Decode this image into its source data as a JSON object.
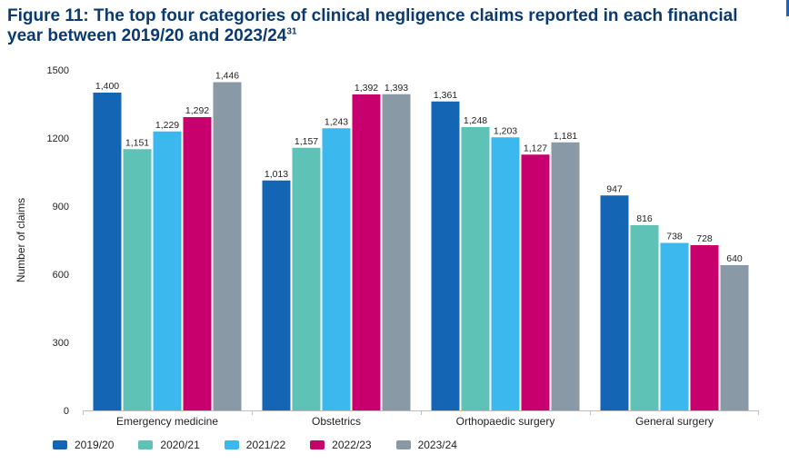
{
  "title": {
    "text": "Figure 11: The top four categories of clinical negligence claims reported in each financial year between 2019/20 and 2023/24",
    "superscript": "31"
  },
  "colors": {
    "2019/20": "#1465b4",
    "2020/21": "#5fc2b6",
    "2021/22": "#3bb8ed",
    "2022/23": "#c8006e",
    "2023/24": "#8a99a6"
  },
  "chart_data": {
    "type": "bar",
    "categories": [
      "Emergency medicine",
      "Obstetrics",
      "Orthopaedic surgery",
      "General surgery"
    ],
    "series": [
      {
        "name": "2019/20",
        "values": [
          1400,
          1013,
          1361,
          947
        ],
        "labels": [
          "1,400",
          "1,013",
          "1,361",
          "947"
        ]
      },
      {
        "name": "2020/21",
        "values": [
          1151,
          1157,
          1248,
          816
        ],
        "labels": [
          "1,151",
          "1,157",
          "1,248",
          "816"
        ]
      },
      {
        "name": "2021/22",
        "values": [
          1229,
          1243,
          1203,
          738
        ],
        "labels": [
          "1,229",
          "1,243",
          "1,203",
          "738"
        ]
      },
      {
        "name": "2022/23",
        "values": [
          1292,
          1392,
          1127,
          728
        ],
        "labels": [
          "1,292",
          "1,392",
          "1,127",
          "728"
        ]
      },
      {
        "name": "2023/24",
        "values": [
          1446,
          1393,
          1181,
          640
        ],
        "labels": [
          "1,446",
          "1,393",
          "1,181",
          "640"
        ]
      }
    ],
    "ylabel": "Number of claims",
    "xlabel": "",
    "ylim": [
      0,
      1500
    ],
    "yticks": [
      0,
      300,
      600,
      900,
      1200,
      1500
    ],
    "grid": false,
    "legend_position": "bottom"
  }
}
